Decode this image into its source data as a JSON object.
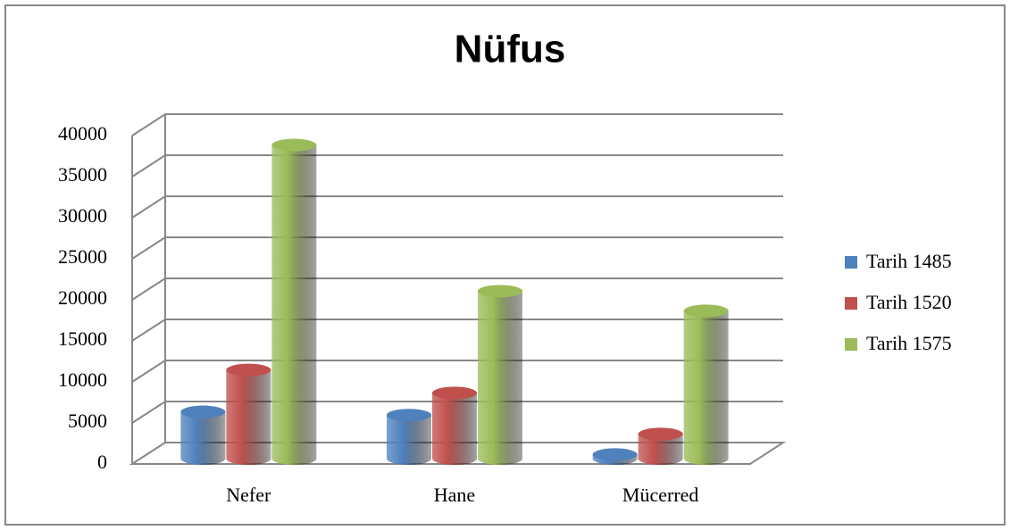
{
  "chart_data": {
    "type": "bar3d",
    "title": "Nüfus",
    "categories": [
      "Nefer",
      "Hane",
      "Mücerred"
    ],
    "series": [
      {
        "name": "Tarih 1485",
        "color": "#4f81bd",
        "values": [
          5700,
          5300,
          500
        ]
      },
      {
        "name": "Tarih 1520",
        "color": "#c0504d",
        "values": [
          10800,
          8000,
          3000
        ]
      },
      {
        "name": "Tarih 1575",
        "color": "#9bbb59",
        "values": [
          38200,
          20400,
          18000
        ]
      }
    ],
    "ylim": [
      0,
      40000
    ],
    "yticks": [
      0,
      5000,
      10000,
      15000,
      20000,
      25000,
      30000,
      35000,
      40000
    ],
    "grid": true,
    "legend": "right"
  }
}
